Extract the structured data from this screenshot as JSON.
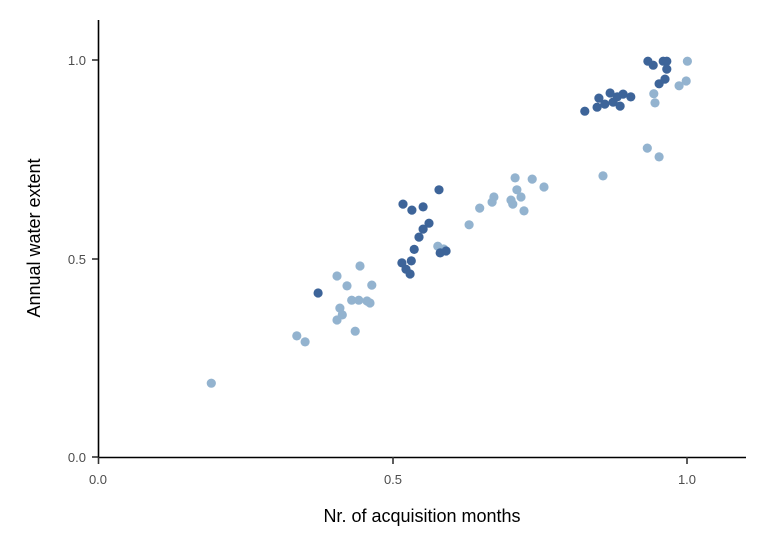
{
  "chart_data": {
    "type": "scatter",
    "title": "",
    "xlabel": "Nr. of acquisition months",
    "ylabel": "Annual water extent",
    "xlim": [
      0,
      1.1
    ],
    "ylim": [
      0,
      1.1
    ],
    "grid": false,
    "legend": "none",
    "x_ticks": [
      {
        "value": 0.0,
        "label": "0.0"
      },
      {
        "value": 0.5,
        "label": "0.5"
      },
      {
        "value": 1.0,
        "label": "1.0"
      }
    ],
    "y_ticks": [
      {
        "value": 0.0,
        "label": "0.0"
      },
      {
        "value": 0.5,
        "label": "0.5"
      },
      {
        "value": 1.0,
        "label": "1.0"
      }
    ],
    "series": [
      {
        "name": "dark",
        "color": "#3d6499",
        "points": [
          [
            0.373,
            0.413
          ],
          [
            0.578,
            0.673
          ],
          [
            0.517,
            0.637
          ],
          [
            0.532,
            0.622
          ],
          [
            0.551,
            0.63
          ],
          [
            0.561,
            0.589
          ],
          [
            0.551,
            0.574
          ],
          [
            0.544,
            0.554
          ],
          [
            0.536,
            0.523
          ],
          [
            0.531,
            0.494
          ],
          [
            0.515,
            0.489
          ],
          [
            0.522,
            0.473
          ],
          [
            0.529,
            0.461
          ],
          [
            0.58,
            0.514
          ],
          [
            0.59,
            0.519
          ],
          [
            0.825,
            0.871
          ],
          [
            0.846,
            0.881
          ],
          [
            0.849,
            0.904
          ],
          [
            0.859,
            0.889
          ],
          [
            0.868,
            0.917
          ],
          [
            0.873,
            0.894
          ],
          [
            0.88,
            0.907
          ],
          [
            0.89,
            0.914
          ],
          [
            0.885,
            0.884
          ],
          [
            0.903,
            0.907
          ],
          [
            0.932,
            0.997
          ],
          [
            0.941,
            0.987
          ],
          [
            0.958,
            0.997
          ],
          [
            0.964,
            0.997
          ],
          [
            0.964,
            0.977
          ],
          [
            0.961,
            0.952
          ],
          [
            0.951,
            0.94
          ]
        ]
      },
      {
        "name": "light",
        "color": "#93b3cf",
        "points": [
          [
            0.192,
            0.186
          ],
          [
            0.337,
            0.305
          ],
          [
            0.351,
            0.29
          ],
          [
            0.405,
            0.456
          ],
          [
            0.444,
            0.481
          ],
          [
            0.422,
            0.431
          ],
          [
            0.464,
            0.433
          ],
          [
            0.43,
            0.395
          ],
          [
            0.442,
            0.395
          ],
          [
            0.456,
            0.393
          ],
          [
            0.461,
            0.388
          ],
          [
            0.41,
            0.375
          ],
          [
            0.414,
            0.358
          ],
          [
            0.405,
            0.345
          ],
          [
            0.436,
            0.317
          ],
          [
            0.576,
            0.531
          ],
          [
            0.586,
            0.524
          ],
          [
            0.629,
            0.585
          ],
          [
            0.647,
            0.627
          ],
          [
            0.668,
            0.642
          ],
          [
            0.671,
            0.655
          ],
          [
            0.7,
            0.647
          ],
          [
            0.703,
            0.637
          ],
          [
            0.717,
            0.655
          ],
          [
            0.71,
            0.673
          ],
          [
            0.707,
            0.703
          ],
          [
            0.736,
            0.7
          ],
          [
            0.756,
            0.68
          ],
          [
            0.722,
            0.62
          ],
          [
            0.856,
            0.708
          ],
          [
            0.931,
            0.778
          ],
          [
            0.951,
            0.756
          ],
          [
            0.942,
            0.915
          ],
          [
            0.944,
            0.892
          ],
          [
            0.999,
            0.997
          ],
          [
            0.997,
            0.947
          ],
          [
            0.985,
            0.935
          ]
        ]
      }
    ]
  }
}
